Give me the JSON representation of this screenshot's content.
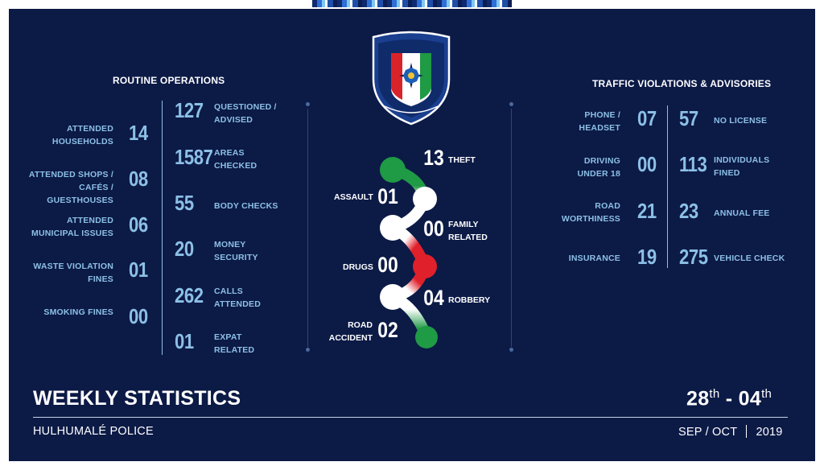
{
  "header": {
    "routine_title": "ROUTINE OPERATIONS",
    "traffic_title": "TRAFFIC VIOLATIONS & ADVISORIES"
  },
  "routine_left": [
    {
      "label": "ATTENDED HOUSEHOLDS",
      "value": "14"
    },
    {
      "label": "ATTENDED SHOPS / CAFÉS / GUESTHOUSES",
      "value": "08"
    },
    {
      "label": "ATTENDED MUNICIPAL ISSUES",
      "value": "06"
    },
    {
      "label": "WASTE VIOLATION FINES",
      "value": "01"
    },
    {
      "label": "SMOKING FINES",
      "value": "00"
    }
  ],
  "routine_right": [
    {
      "value": "127",
      "label": "QUESTIONED / ADVISED"
    },
    {
      "value": "1587",
      "label": "AREAS CHECKED"
    },
    {
      "value": "55",
      "label": "BODY CHECKS"
    },
    {
      "value": "20",
      "label": "MONEY SECURITY"
    },
    {
      "value": "262",
      "label": "CALLS ATTENDED"
    },
    {
      "value": "01",
      "label": "EXPAT RELATED"
    }
  ],
  "crime": [
    {
      "label": "THEFT",
      "value": "13"
    },
    {
      "label": "ASSAULT",
      "value": "01"
    },
    {
      "label": "FAMILY RELATED",
      "value": "00"
    },
    {
      "label": "DRUGS",
      "value": "00"
    },
    {
      "label": "ROBBERY",
      "value": "04"
    },
    {
      "label": "ROAD ACCIDENT",
      "value": "02"
    }
  ],
  "traffic_left": [
    {
      "label": "PHONE / HEADSET",
      "value": "07"
    },
    {
      "label": "DRIVING UNDER 18",
      "value": "00"
    },
    {
      "label": "ROAD WORTHINESS",
      "value": "21"
    },
    {
      "label": "INSURANCE",
      "value": "19"
    }
  ],
  "traffic_right": [
    {
      "value": "57",
      "label": "NO LICENSE"
    },
    {
      "value": "113",
      "label": "INDIVIDUALS FINED"
    },
    {
      "value": "23",
      "label": "ANNUAL FEE"
    },
    {
      "value": "275",
      "label": "VEHICLE CHECK"
    }
  ],
  "footer": {
    "title": "WEEKLY STATISTICS",
    "org": "HULHUMALÉ POLICE",
    "date_start": "28",
    "date_start_sup": "th",
    "date_sep": " - ",
    "date_end": "04",
    "date_end_sup": "th",
    "months": "SEP / OCT",
    "year": "2019"
  },
  "colors": {
    "background": "#0c1a46",
    "accent": "#8cc0e6",
    "green": "#1f9a45",
    "red": "#e0202a"
  },
  "icons": {
    "logo": "police-emblem-icon"
  }
}
